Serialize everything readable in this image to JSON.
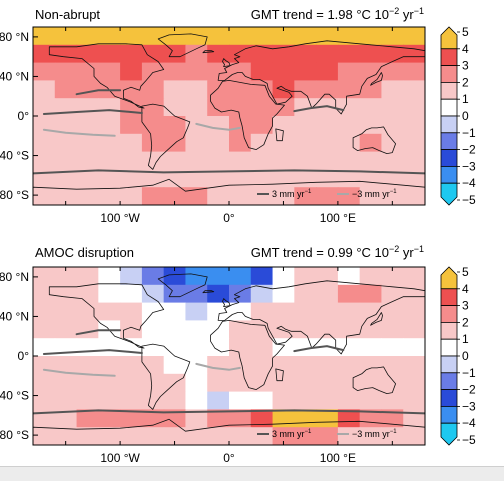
{
  "chart_data": [
    {
      "type": "heatmap",
      "title": "Non-abrupt",
      "trend_label": "GMT trend = 1.98 °C 10",
      "trend_exp": "−2",
      "trend_unit": " yr",
      "trend_unit_exp": "−1",
      "lat_ticks": [
        "80 °N",
        "40 °N",
        "0°",
        "40 °S",
        "80 °S"
      ],
      "lat_values": [
        80,
        40,
        0,
        -40,
        -80
      ],
      "lon_ticks": [
        "100 °W",
        "0°",
        "100 °E"
      ],
      "lon_values": [
        -100,
        0,
        100
      ],
      "xlim": [
        -180,
        180
      ],
      "ylim": [
        -90,
        90
      ],
      "colorbar_ticks": [
        "5",
        "4",
        "3",
        "2",
        "1",
        "0",
        "−1",
        "−2",
        "−3",
        "−4",
        "−5"
      ],
      "colorbar_range": [
        -5,
        5
      ],
      "contour_legend": [
        {
          "label": "3 mm yr",
          "exp": "−1",
          "color": "#555555"
        },
        {
          "label": "−3 mm yr",
          "exp": "−1",
          "color": "#a8a8a8"
        }
      ],
      "field": [
        [
          4.4,
          4.5,
          4.6,
          4.7,
          4.8,
          4.8,
          4.7,
          4.6,
          4.5,
          4.5,
          4.6,
          4.7,
          4.8,
          4.8,
          4.7,
          4.6,
          4.5,
          4.4
        ],
        [
          3.2,
          3.3,
          3.5,
          3.7,
          3.6,
          3.3,
          3.0,
          2.9,
          3.2,
          3.4,
          3.7,
          3.9,
          3.8,
          3.6,
          3.4,
          3.3,
          3.2,
          3.1
        ],
        [
          2.2,
          2.3,
          2.4,
          2.8,
          3.0,
          2.6,
          2.2,
          2.1,
          2.4,
          2.8,
          3.1,
          3.4,
          3.3,
          3.1,
          2.7,
          2.4,
          2.3,
          2.2
        ],
        [
          1.9,
          2.0,
          2.1,
          2.2,
          2.7,
          2.9,
          1.9,
          1.8,
          2.1,
          2.6,
          2.9,
          3.0,
          2.8,
          2.5,
          2.2,
          2.0,
          1.9,
          1.9
        ],
        [
          1.5,
          1.6,
          1.8,
          1.9,
          2.4,
          2.7,
          1.8,
          1.7,
          2.0,
          2.5,
          2.6,
          2.3,
          1.9,
          1.8,
          1.7,
          1.6,
          1.5,
          1.5
        ],
        [
          1.4,
          1.5,
          1.6,
          1.7,
          2.3,
          2.8,
          2.2,
          1.6,
          1.7,
          2.2,
          2.4,
          1.9,
          1.7,
          1.6,
          1.6,
          1.5,
          1.4,
          1.4
        ],
        [
          1.3,
          1.4,
          1.5,
          1.6,
          1.7,
          2.5,
          2.6,
          1.5,
          1.6,
          2.2,
          1.8,
          1.6,
          1.5,
          1.4,
          1.7,
          2.4,
          1.5,
          1.3
        ],
        [
          1.2,
          1.3,
          1.4,
          1.4,
          1.5,
          1.9,
          1.5,
          1.3,
          1.4,
          1.5,
          1.4,
          1.3,
          1.3,
          1.2,
          1.4,
          1.8,
          1.4,
          1.2
        ],
        [
          1.1,
          1.1,
          1.2,
          1.2,
          1.2,
          1.3,
          1.2,
          1.1,
          1.1,
          1.2,
          1.2,
          1.1,
          1.1,
          1.1,
          1.1,
          1.2,
          1.1,
          1.1
        ],
        [
          1.5,
          1.6,
          1.7,
          1.8,
          1.9,
          2.0,
          2.1,
          2.0,
          1.9,
          1.8,
          1.8,
          1.9,
          2.0,
          2.1,
          2.0,
          1.9,
          1.8,
          1.6
        ]
      ]
    },
    {
      "type": "heatmap",
      "title": "AMOC disruption",
      "trend_label": "GMT trend = 0.99 °C 10",
      "trend_exp": "−2",
      "trend_unit": " yr",
      "trend_unit_exp": "−1",
      "lat_ticks": [
        "80 °N",
        "40 °N",
        "0°",
        "40 °S",
        "80 °S"
      ],
      "lat_values": [
        80,
        40,
        0,
        -40,
        -80
      ],
      "lon_ticks": [
        "100 °W",
        "0°",
        "100 °E"
      ],
      "lon_values": [
        -100,
        0,
        100
      ],
      "xlim": [
        -180,
        180
      ],
      "ylim": [
        -90,
        90
      ],
      "colorbar_ticks": [
        "5",
        "4",
        "3",
        "2",
        "1",
        "0",
        "−1",
        "−2",
        "−3",
        "−4",
        "−5"
      ],
      "colorbar_range": [
        -5,
        5
      ],
      "contour_legend": [
        {
          "label": "3 mm yr",
          "exp": "−1",
          "color": "#555555"
        },
        {
          "label": "−3 mm yr",
          "exp": "−1",
          "color": "#a8a8a8"
        }
      ],
      "field": [
        [
          1.8,
          1.9,
          1.6,
          0.5,
          -0.6,
          -1.5,
          -2.2,
          -3.2,
          -4.0,
          -3.6,
          -2.4,
          0.2,
          1.2,
          1.0,
          0.9,
          1.6,
          1.9,
          1.8
        ],
        [
          1.5,
          1.6,
          1.3,
          0.8,
          0.4,
          -0.4,
          -1.2,
          -2.0,
          -2.6,
          -2.0,
          -0.8,
          0.6,
          1.4,
          1.4,
          2.3,
          2.1,
          1.6,
          1.5
        ],
        [
          1.3,
          1.4,
          1.2,
          1.1,
          1.0,
          0.6,
          0.1,
          -0.2,
          0.2,
          0.9,
          1.4,
          1.8,
          1.9,
          1.7,
          1.3,
          1.2,
          1.3,
          1.3
        ],
        [
          1.0,
          1.1,
          1.0,
          0.9,
          1.0,
          0.7,
          0.4,
          0.5,
          0.7,
          1.3,
          1.6,
          1.4,
          1.2,
          1.1,
          1.0,
          1.0,
          1.0,
          1.0
        ],
        [
          0.8,
          0.9,
          0.9,
          0.8,
          0.9,
          0.6,
          0.3,
          0.4,
          0.8,
          1.2,
          1.1,
          0.9,
          0.9,
          0.8,
          0.8,
          0.8,
          0.8,
          0.8
        ],
        [
          1.0,
          1.1,
          1.2,
          1.3,
          1.6,
          1.4,
          0.7,
          0.8,
          1.2,
          1.5,
          1.4,
          1.1,
          1.0,
          1.0,
          1.1,
          1.2,
          1.1,
          1.0
        ],
        [
          1.1,
          1.2,
          1.3,
          1.4,
          1.5,
          1.6,
          1.2,
          0.9,
          1.1,
          1.6,
          1.3,
          1.1,
          1.1,
          1.0,
          1.3,
          1.8,
          1.4,
          1.2
        ],
        [
          1.3,
          1.4,
          1.5,
          1.6,
          1.7,
          1.5,
          1.0,
          0.5,
          -0.2,
          0.4,
          0.9,
          1.1,
          1.3,
          1.3,
          1.4,
          1.6,
          1.5,
          1.4
        ],
        [
          1.8,
          1.9,
          2.0,
          2.2,
          2.4,
          2.3,
          2.0,
          1.9,
          2.2,
          2.9,
          3.7,
          4.4,
          4.6,
          4.2,
          3.2,
          2.4,
          2.0,
          1.9
        ],
        [
          1.4,
          1.5,
          1.6,
          1.7,
          1.8,
          1.8,
          1.9,
          1.9,
          1.8,
          1.8,
          1.9,
          2.0,
          2.0,
          2.0,
          1.9,
          1.8,
          1.6,
          1.5
        ]
      ]
    }
  ]
}
